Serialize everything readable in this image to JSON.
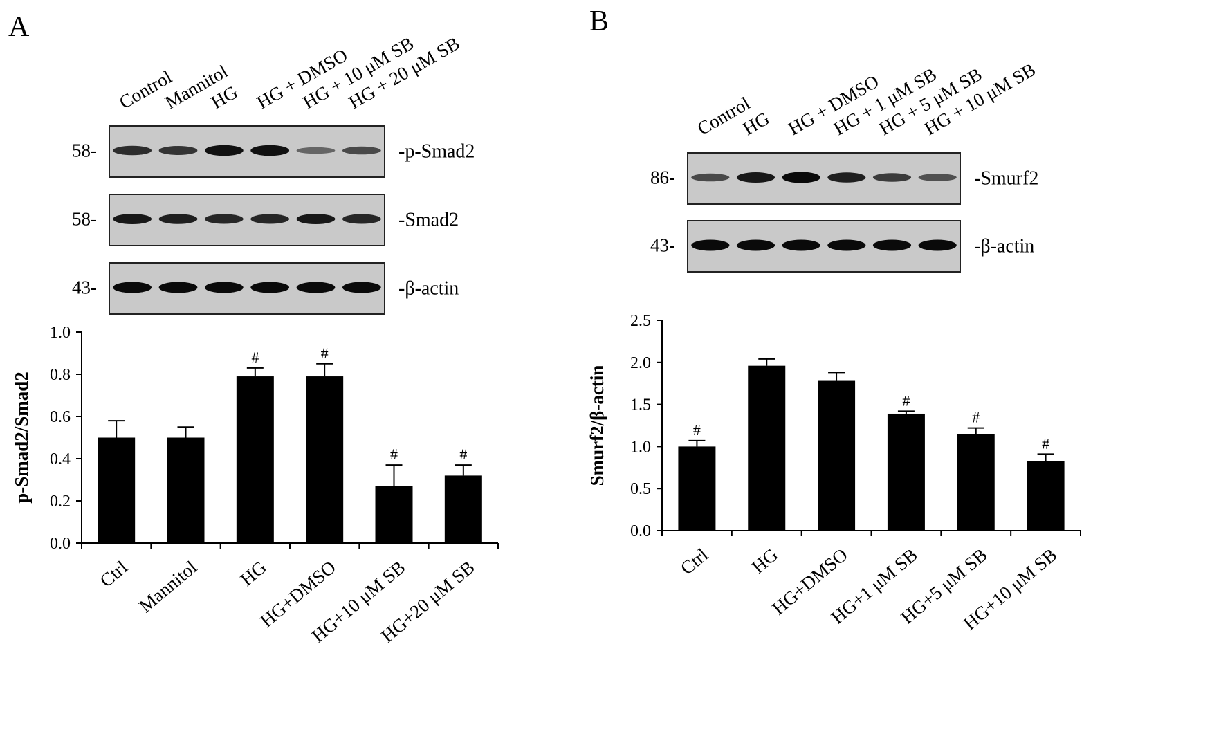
{
  "panels": [
    {
      "letter": "A",
      "blot": {
        "lanes": [
          "Control",
          "Mannitol",
          "HG",
          "HG + DMSO",
          "HG + 10 μM SB",
          "HG + 20 μM SB"
        ],
        "rows": [
          {
            "marker": "58-",
            "label": "-p-Smad2",
            "intensity": [
              0.75,
              0.7,
              0.95,
              0.95,
              0.35,
              0.55
            ]
          },
          {
            "marker": "58-",
            "label": "-Smad2",
            "intensity": [
              0.9,
              0.85,
              0.8,
              0.8,
              0.9,
              0.8
            ]
          },
          {
            "marker": "43-",
            "label": "-β-actin",
            "intensity": [
              1,
              1,
              1,
              1,
              1,
              1
            ]
          }
        ]
      }
    },
    {
      "letter": "B",
      "blot": {
        "lanes": [
          "Control",
          "HG",
          "HG + DMSO",
          "HG + 1 μM SB",
          "HG + 5 μM SB",
          "HG + 10 μM SB"
        ],
        "rows": [
          {
            "marker": "86-",
            "label": "-Smurf2",
            "intensity": [
              0.55,
              0.9,
              1,
              0.85,
              0.65,
              0.5
            ]
          },
          {
            "marker": "43-",
            "label": "-β-actin",
            "intensity": [
              1,
              1,
              1,
              1,
              1,
              1
            ]
          }
        ]
      }
    }
  ],
  "chart_data": [
    {
      "type": "bar",
      "categories": [
        "Ctrl",
        "Mannitol",
        "HG",
        "HG+DMSO",
        "HG+10 μM SB",
        "HG+20 μM SB"
      ],
      "values": [
        0.5,
        0.5,
        0.79,
        0.79,
        0.27,
        0.32
      ],
      "errors": [
        0.08,
        0.05,
        0.04,
        0.06,
        0.1,
        0.05
      ],
      "annotations": [
        "",
        "",
        "#",
        "#",
        "#",
        "#"
      ],
      "ylabel": "p-Smad2/Smad2",
      "ylim": [
        0,
        1.0
      ],
      "yticks": [
        "0.0",
        "0.2",
        "0.4",
        "0.6",
        "0.8",
        "1.0"
      ],
      "grid": false,
      "bar_color": "#000000"
    },
    {
      "type": "bar",
      "categories": [
        "Ctrl",
        "HG",
        "HG+DMSO",
        "HG+1 μM SB",
        "HG+5 μM SB",
        "HG+10 μM SB"
      ],
      "values": [
        1.0,
        1.96,
        1.78,
        1.39,
        1.15,
        0.83
      ],
      "errors": [
        0.07,
        0.08,
        0.1,
        0.03,
        0.07,
        0.08
      ],
      "annotations": [
        "#",
        "",
        "",
        "#",
        "#",
        "#"
      ],
      "ylabel": "Smurf2/β-actin",
      "ylim": [
        0,
        2.5
      ],
      "yticks": [
        "0.0",
        "0.5",
        "1.0",
        "1.5",
        "2.0",
        "2.5"
      ],
      "grid": false,
      "bar_color": "#000000"
    }
  ]
}
